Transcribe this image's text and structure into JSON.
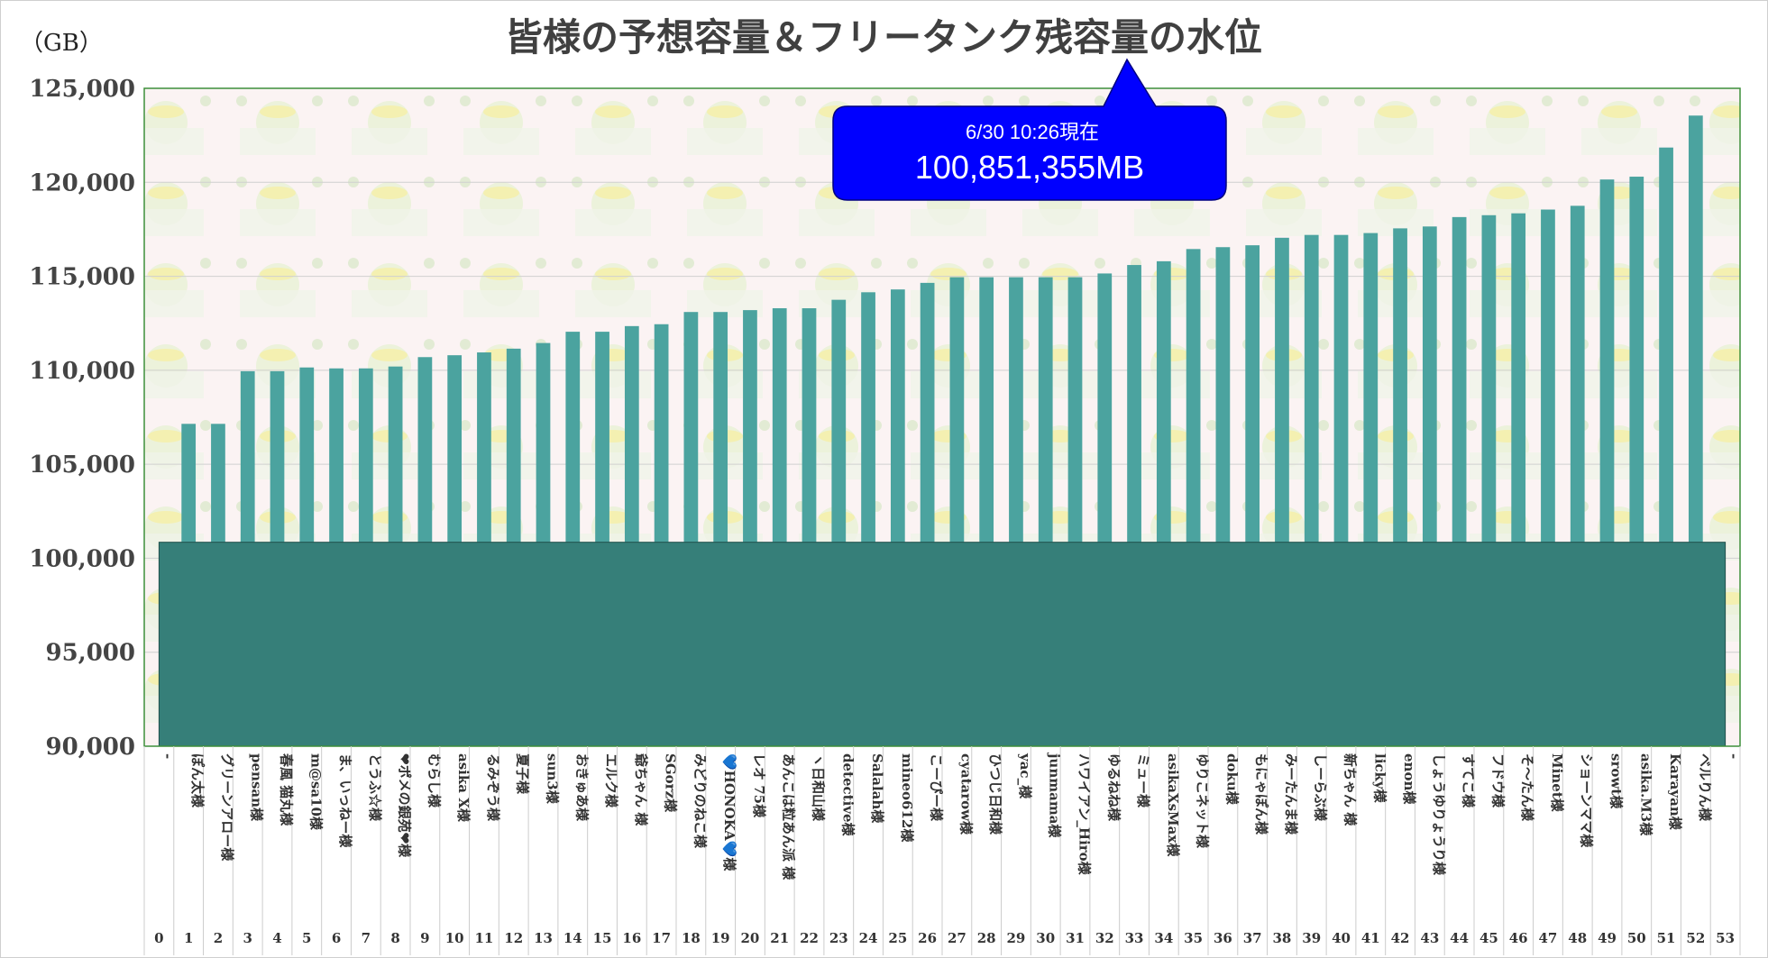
{
  "chart_data": {
    "type": "bar",
    "title": "皆様の予想容量＆フリータンク残容量の水位",
    "unit_label": "（GB）",
    "ylim": [
      90000,
      125000
    ],
    "yticks": [
      "90,000",
      "95,000",
      "100,000",
      "105,000",
      "110,000",
      "115,000",
      "120,000",
      "125,000"
    ],
    "ytick_values": [
      90000,
      95000,
      100000,
      105000,
      110000,
      115000,
      120000,
      125000
    ],
    "water_level": 100851,
    "callout": {
      "line1": "6/30 10:26現在",
      "line2": "100,851,355MB"
    },
    "colors": {
      "bar": "#4ba39f",
      "water": "#367f79",
      "frame": "#3d8f3a",
      "callout": "#0000ff"
    },
    "bars": [
      {
        "idx": "0",
        "name": "-",
        "value": null
      },
      {
        "idx": "1",
        "name": "ぽん太様",
        "value": 107150
      },
      {
        "idx": "2",
        "name": "グリーンアロー様",
        "value": 107150
      },
      {
        "idx": "3",
        "name": "pensan様",
        "value": 109950
      },
      {
        "idx": "4",
        "name": "春風 猫丸様",
        "value": 109950
      },
      {
        "idx": "5",
        "name": "m@sa10様",
        "value": 110150
      },
      {
        "idx": "6",
        "name": "ま、いっねー様",
        "value": 110100
      },
      {
        "idx": "7",
        "name": "とうふ☆様",
        "value": 110100
      },
      {
        "idx": "8",
        "name": "❤ポメの銀苑❤様",
        "value": 110200
      },
      {
        "idx": "9",
        "name": "むらし様",
        "value": 110700
      },
      {
        "idx": "10",
        "name": "asika X様",
        "value": 110800
      },
      {
        "idx": "11",
        "name": "るみぞう様",
        "value": 110950
      },
      {
        "idx": "12",
        "name": "夏子様",
        "value": 111150
      },
      {
        "idx": "13",
        "name": "sun3様",
        "value": 111450
      },
      {
        "idx": "14",
        "name": "おきゅあ様",
        "value": 112050
      },
      {
        "idx": "15",
        "name": "エルク様",
        "value": 112050
      },
      {
        "idx": "16",
        "name": "爺ちゃん 様",
        "value": 112350
      },
      {
        "idx": "17",
        "name": "SGorz様",
        "value": 112450
      },
      {
        "idx": "18",
        "name": "みどりのねこ様",
        "value": 113100
      },
      {
        "idx": "19",
        "name": "💙HONOKA💙様",
        "value": 113100
      },
      {
        "idx": "20",
        "name": "レオ 75様",
        "value": 113200
      },
      {
        "idx": "21",
        "name": "あんこは粒あん派 様",
        "value": 113300
      },
      {
        "idx": "22",
        "name": "ヽ日和山様",
        "value": 113300
      },
      {
        "idx": "23",
        "name": "detective様",
        "value": 113750
      },
      {
        "idx": "24",
        "name": "Salalah様",
        "value": 114150
      },
      {
        "idx": "25",
        "name": "mineo612様",
        "value": 114300
      },
      {
        "idx": "26",
        "name": "こーぴー様",
        "value": 114650
      },
      {
        "idx": "27",
        "name": "cyatarow様",
        "value": 114950
      },
      {
        "idx": "28",
        "name": "ひつじ日和様",
        "value": 114950
      },
      {
        "idx": "29",
        "name": "yac_様",
        "value": 114950
      },
      {
        "idx": "30",
        "name": "junmama様",
        "value": 114950
      },
      {
        "idx": "31",
        "name": "ハワイアン_Hiro様",
        "value": 114950
      },
      {
        "idx": "32",
        "name": "ゆるねね様",
        "value": 115150
      },
      {
        "idx": "33",
        "name": "ミュー様",
        "value": 115600
      },
      {
        "idx": "34",
        "name": "asikaXsMax様",
        "value": 115800
      },
      {
        "idx": "35",
        "name": "ゆりこネット様",
        "value": 116450
      },
      {
        "idx": "36",
        "name": "doku様",
        "value": 116550
      },
      {
        "idx": "37",
        "name": "もにゃぽん様",
        "value": 116650
      },
      {
        "idx": "38",
        "name": "みーたんま様",
        "value": 117050
      },
      {
        "idx": "39",
        "name": "しーらぶ様",
        "value": 117200
      },
      {
        "idx": "40",
        "name": "新ちゃん 様",
        "value": 117200
      },
      {
        "idx": "41",
        "name": "licky様",
        "value": 117300
      },
      {
        "idx": "42",
        "name": "enon様",
        "value": 117550
      },
      {
        "idx": "43",
        "name": "しょうゆりょうり様",
        "value": 117650
      },
      {
        "idx": "44",
        "name": "すてこ様",
        "value": 118150
      },
      {
        "idx": "45",
        "name": "フドウ様",
        "value": 118250
      },
      {
        "idx": "46",
        "name": "そ～たん様",
        "value": 118350
      },
      {
        "idx": "47",
        "name": "Minet様",
        "value": 118550
      },
      {
        "idx": "48",
        "name": "ショーンママ様",
        "value": 118750
      },
      {
        "idx": "49",
        "name": "srowt様",
        "value": 120150
      },
      {
        "idx": "50",
        "name": "asika.M3様",
        "value": 120300
      },
      {
        "idx": "51",
        "name": "Karayan様",
        "value": 121850
      },
      {
        "idx": "52",
        "name": "ベルりん様",
        "value": 123550
      },
      {
        "idx": "53",
        "name": "-",
        "value": null
      }
    ]
  }
}
